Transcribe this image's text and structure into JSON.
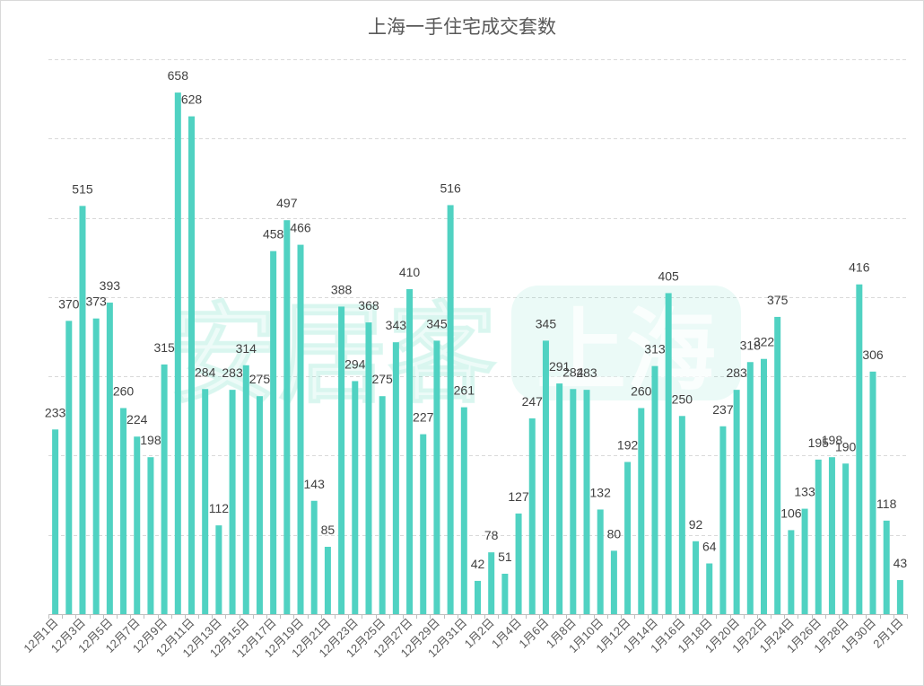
{
  "chart_data": {
    "type": "bar",
    "title": "上海一手住宅成交套数",
    "categories": [
      "12月1日",
      "",
      "12月3日",
      "",
      "12月5日",
      "",
      "12月7日",
      "",
      "12月9日",
      "",
      "12月11日",
      "",
      "12月13日",
      "",
      "12月15日",
      "",
      "12月17日",
      "",
      "12月19日",
      "",
      "12月21日",
      "",
      "12月23日",
      "",
      "12月25日",
      "",
      "12月27日",
      "",
      "12月29日",
      "",
      "12月31日",
      "",
      "1月2日",
      "",
      "1月4日",
      "",
      "1月6日",
      "",
      "1月8日",
      "",
      "1月10日",
      "",
      "1月12日",
      "",
      "1月14日",
      "",
      "1月16日",
      "",
      "1月18日",
      "",
      "1月20日",
      "",
      "1月22日",
      "",
      "1月24日",
      "",
      "1月26日",
      "",
      "1月28日",
      "",
      "1月30日",
      "",
      "2月1日"
    ],
    "values": [
      233,
      370,
      515,
      373,
      393,
      260,
      224,
      198,
      315,
      658,
      628,
      284,
      112,
      283,
      314,
      275,
      458,
      497,
      466,
      143,
      85,
      388,
      294,
      368,
      275,
      343,
      410,
      227,
      345,
      516,
      261,
      42,
      78,
      51,
      127,
      247,
      345,
      291,
      284,
      283,
      132,
      80,
      192,
      260,
      313,
      405,
      250,
      92,
      64,
      237,
      283,
      318,
      322,
      375,
      106,
      133,
      195,
      198,
      190,
      416,
      306,
      118,
      43
    ],
    "ylim": [
      0,
      700
    ],
    "y_grid_step": 100,
    "grid": true,
    "data_labels": true
  },
  "watermark": {
    "brand": "安居客",
    "city": "上海"
  },
  "colors": {
    "bar": "#50d2c2",
    "grid": "#d9d9d9",
    "axis": "#bfbfbf",
    "title": "#595959",
    "label": "#404040",
    "watermark": "#4cd4b8"
  }
}
